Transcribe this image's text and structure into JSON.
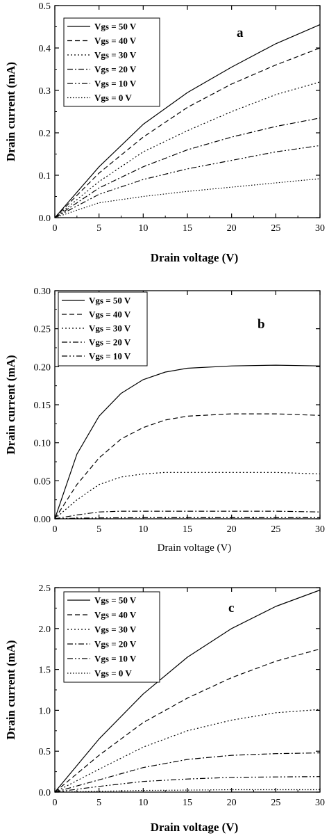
{
  "chart_data": [
    {
      "type": "line",
      "panel_label": "a",
      "xlabel": "Drain voltage (V)",
      "ylabel": "Drain current (mA)",
      "xlim": [
        0,
        30
      ],
      "ylim": [
        0,
        0.5
      ],
      "xticks": [
        "0",
        "5",
        "10",
        "15",
        "20",
        "25",
        "30"
      ],
      "yticks": [
        "0.0",
        "0.1",
        "0.2",
        "0.3",
        "0.4",
        "0.5"
      ],
      "legend_position": "top-left",
      "x": [
        0,
        5,
        10,
        15,
        20,
        25,
        30
      ],
      "series": [
        {
          "name": "Vgs = 50 V",
          "style": "solid",
          "values": [
            0,
            0.12,
            0.22,
            0.295,
            0.355,
            0.41,
            0.455
          ]
        },
        {
          "name": "Vgs = 40 V",
          "style": "dashed",
          "values": [
            0,
            0.105,
            0.19,
            0.26,
            0.315,
            0.36,
            0.4
          ]
        },
        {
          "name": "Vgs = 30 V",
          "style": "dotted",
          "values": [
            0,
            0.085,
            0.155,
            0.205,
            0.25,
            0.29,
            0.32
          ]
        },
        {
          "name": "Vgs = 20 V",
          "style": "dashdot",
          "values": [
            0,
            0.07,
            0.12,
            0.16,
            0.19,
            0.215,
            0.235
          ]
        },
        {
          "name": "Vgs = 10 V",
          "style": "dashdotdot",
          "values": [
            0,
            0.055,
            0.09,
            0.115,
            0.135,
            0.155,
            0.17
          ]
        },
        {
          "name": "Vgs = 0 V",
          "style": "shortdot",
          "values": [
            0,
            0.035,
            0.05,
            0.062,
            0.072,
            0.082,
            0.092
          ]
        }
      ]
    },
    {
      "type": "line",
      "panel_label": "b",
      "xlabel": "Drain voltage (V)",
      "ylabel": "Drain current (mA)",
      "xlim": [
        0,
        30
      ],
      "ylim": [
        0,
        0.3
      ],
      "xticks": [
        "0",
        "5",
        "10",
        "15",
        "20",
        "25",
        "30"
      ],
      "yticks": [
        "0.00",
        "0.05",
        "0.10",
        "0.15",
        "0.20",
        "0.25",
        "0.30"
      ],
      "legend_position": "top-left",
      "x": [
        0,
        2.5,
        5,
        7.5,
        10,
        12.5,
        15,
        20,
        25,
        30
      ],
      "series": [
        {
          "name": "Vgs = 50 V",
          "style": "solid",
          "values": [
            0,
            0.085,
            0.135,
            0.165,
            0.183,
            0.193,
            0.198,
            0.201,
            0.202,
            0.201
          ]
        },
        {
          "name": "Vgs = 40 V",
          "style": "dashed",
          "values": [
            0,
            0.045,
            0.08,
            0.105,
            0.12,
            0.13,
            0.135,
            0.138,
            0.138,
            0.136
          ]
        },
        {
          "name": "Vgs = 30 V",
          "style": "dotted",
          "values": [
            0,
            0.025,
            0.045,
            0.055,
            0.059,
            0.061,
            0.061,
            0.061,
            0.061,
            0.059
          ]
        },
        {
          "name": "Vgs = 20 V",
          "style": "dashdot",
          "values": [
            0,
            0.005,
            0.009,
            0.01,
            0.01,
            0.01,
            0.01,
            0.01,
            0.01,
            0.009
          ]
        },
        {
          "name": "Vgs = 10 V",
          "style": "dashdotdot",
          "values": [
            0,
            0.0008,
            0.0012,
            0.0014,
            0.0015,
            0.0015,
            0.0015,
            0.0015,
            0.0015,
            0.0015
          ]
        }
      ]
    },
    {
      "type": "line",
      "panel_label": "c",
      "xlabel": "Drain voltage (V)",
      "ylabel": "Drain current (mA)",
      "xlim": [
        0,
        30
      ],
      "ylim": [
        0,
        2.5
      ],
      "xticks": [
        "0",
        "5",
        "10",
        "15",
        "20",
        "25",
        "30"
      ],
      "yticks": [
        "0.0",
        "0.5",
        "1.0",
        "1.5",
        "2.0",
        "2.5"
      ],
      "legend_position": "top-left",
      "x": [
        0,
        5,
        10,
        15,
        20,
        25,
        30
      ],
      "series": [
        {
          "name": "Vgs = 50 V",
          "style": "solid",
          "values": [
            0,
            0.65,
            1.2,
            1.65,
            2.0,
            2.27,
            2.47
          ]
        },
        {
          "name": "Vgs = 40 V",
          "style": "dashed",
          "values": [
            0,
            0.45,
            0.85,
            1.15,
            1.4,
            1.6,
            1.75
          ]
        },
        {
          "name": "Vgs = 30 V",
          "style": "dotted",
          "values": [
            0,
            0.28,
            0.55,
            0.75,
            0.88,
            0.97,
            1.01
          ]
        },
        {
          "name": "Vgs = 20 V",
          "style": "dashdot",
          "values": [
            0,
            0.15,
            0.3,
            0.4,
            0.45,
            0.47,
            0.48
          ]
        },
        {
          "name": "Vgs = 10 V",
          "style": "dashdotdot",
          "values": [
            0,
            0.07,
            0.13,
            0.16,
            0.18,
            0.185,
            0.19
          ]
        },
        {
          "name": "Vgs = 0 V",
          "style": "shortdot",
          "values": [
            0,
            0.01,
            0.02,
            0.025,
            0.03,
            0.03,
            0.03
          ]
        }
      ]
    }
  ]
}
